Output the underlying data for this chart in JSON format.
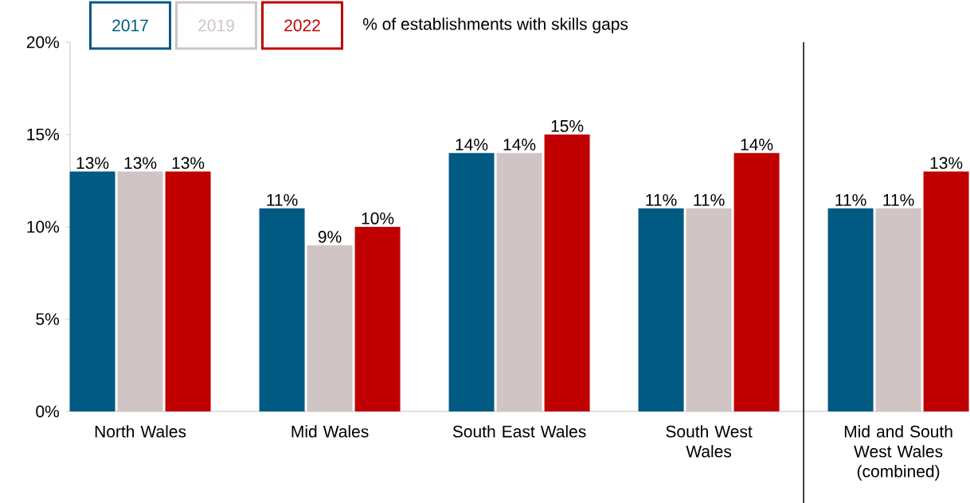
{
  "chart_data": {
    "type": "bar",
    "title": "% of establishments with skills gaps",
    "categories": [
      "North Wales",
      "Mid Wales",
      "South East Wales",
      "South West Wales",
      "Mid and South West Wales (combined)"
    ],
    "series": [
      {
        "name": "2017",
        "color": "#005a82",
        "values": [
          13,
          11,
          14,
          11,
          11
        ],
        "value_labels": [
          "13%",
          "11%",
          "14%",
          "11%",
          "11%"
        ]
      },
      {
        "name": "2019",
        "color": "#d0c4c4",
        "values": [
          13,
          9,
          14,
          11,
          11
        ],
        "value_labels": [
          "13%",
          "9%",
          "14%",
          "11%",
          "11%"
        ]
      },
      {
        "name": "2022",
        "color": "#c00000",
        "values": [
          13,
          10,
          15,
          14,
          13
        ],
        "value_labels": [
          "13%",
          "10%",
          "15%",
          "14%",
          "13%"
        ]
      }
    ],
    "ylim": [
      0,
      20
    ],
    "yticks": [
      {
        "value": 0,
        "label": "0%"
      },
      {
        "value": 5,
        "label": "5%"
      },
      {
        "value": 10,
        "label": "10%"
      },
      {
        "value": 15,
        "label": "15%"
      },
      {
        "value": 20,
        "label": "20%"
      }
    ],
    "legend": "top left",
    "grid": false
  }
}
